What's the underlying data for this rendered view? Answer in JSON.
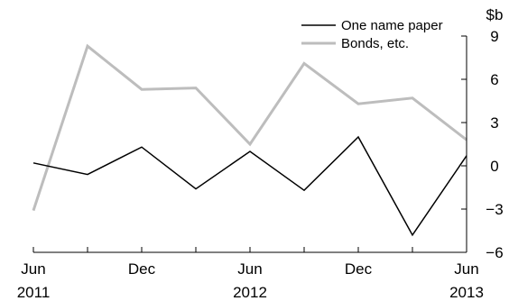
{
  "chart_data": {
    "type": "line",
    "x": [
      "Jun 2011",
      "Sep 2011",
      "Dec 2011",
      "Mar 2012",
      "Jun 2012",
      "Sep 2012",
      "Dec 2012",
      "Mar 2013",
      "Jun 2013"
    ],
    "series": [
      {
        "name": "One name paper",
        "color": "#000000",
        "values": [
          0.2,
          -0.6,
          1.3,
          -1.6,
          1.0,
          -1.7,
          2.0,
          -4.8,
          0.7
        ]
      },
      {
        "name": "Bonds, etc.",
        "color": "#bdbdbd",
        "values": [
          -3.1,
          8.3,
          5.3,
          5.4,
          1.5,
          7.1,
          4.3,
          4.7,
          1.8
        ]
      }
    ],
    "ylabel": "$b",
    "ylim": [
      -6,
      9
    ],
    "yticks": [
      -6,
      -3,
      0,
      3,
      6,
      9
    ],
    "ytick_labels": [
      "−6",
      "−3",
      "0",
      "3",
      "6",
      "9"
    ],
    "y_axis_position": "right",
    "xtick_labels": [
      {
        "month": "Jun",
        "year": "2011"
      },
      {
        "month": "Dec",
        "year": ""
      },
      {
        "month": "Jun",
        "year": "2012"
      },
      {
        "month": "Dec",
        "year": ""
      },
      {
        "month": "Jun",
        "year": "2013"
      }
    ],
    "grid": false,
    "legend_position": "top-right"
  }
}
